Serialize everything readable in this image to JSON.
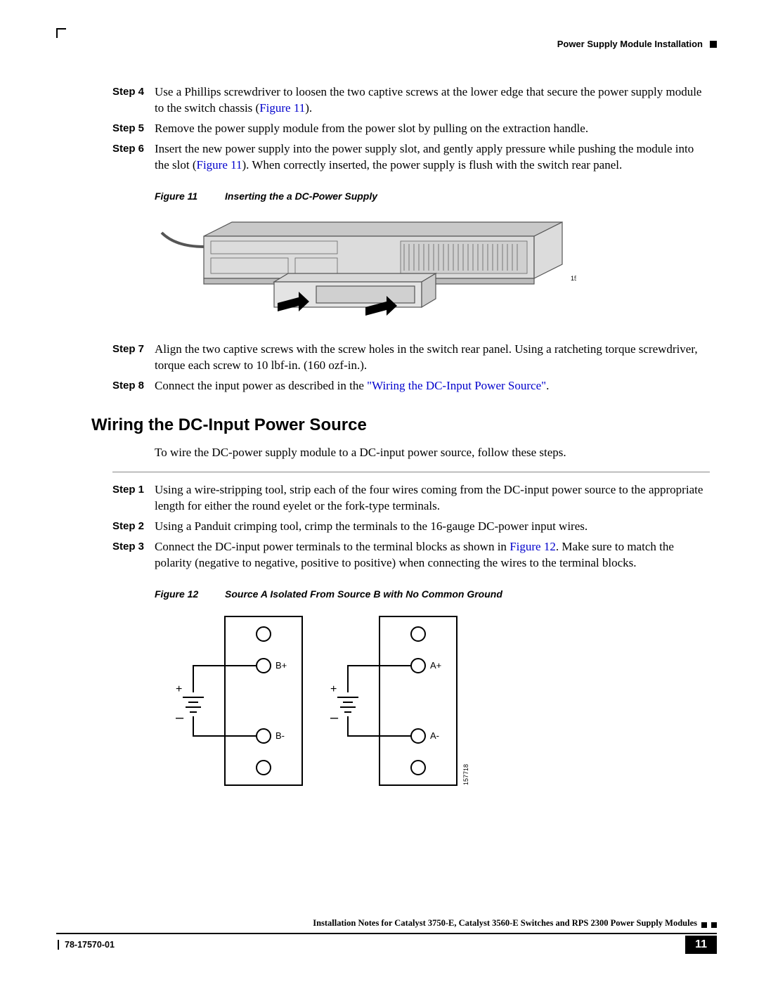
{
  "header": {
    "section_title": "Power Supply Module Installation"
  },
  "steps_top": [
    {
      "label": "Step 4",
      "pre": "Use a Phillips screwdriver to loosen the two captive screws at the lower edge that secure the power supply module to the switch chassis (",
      "link": "Figure 11",
      "post": ")."
    },
    {
      "label": "Step 5",
      "pre": "Remove the power supply module from the power slot by pulling on the extraction handle.",
      "link": "",
      "post": ""
    },
    {
      "label": "Step 6",
      "pre": "Insert the new power supply into the power supply slot, and gently apply pressure while pushing the module into the slot (",
      "link": "Figure 11",
      "post": "). When correctly inserted, the power supply is flush with the switch rear panel."
    }
  ],
  "fig11": {
    "label": "Figure 11",
    "caption": "Inserting the a DC-Power Supply",
    "imgnum": "158123"
  },
  "steps_mid": [
    {
      "label": "Step 7",
      "pre": "Align the two captive screws with the screw holes in the switch rear panel. Using a ratcheting torque screwdriver, torque each screw to 10 lbf-in. (160 ozf-in.).",
      "link": "",
      "post": ""
    },
    {
      "label": "Step 8",
      "pre": "Connect the input power as described in the ",
      "link": "\"Wiring the DC-Input Power Source\"",
      "post": "."
    }
  ],
  "section": {
    "heading": "Wiring the DC-Input Power Source",
    "intro": "To wire the DC-power supply module to a DC-input power source, follow these steps."
  },
  "steps_bot": [
    {
      "label": "Step 1",
      "pre": "Using a wire-stripping tool, strip each of the four wires coming from the DC-input power source to the appropriate length for either the round eyelet or the fork-type terminals.",
      "link": "",
      "post": ""
    },
    {
      "label": "Step 2",
      "pre": "Using a Panduit crimping tool, crimp the terminals to the 16-gauge DC-power input wires.",
      "link": "",
      "post": ""
    },
    {
      "label": "Step 3",
      "pre": "Connect the DC-input power terminals to the terminal blocks as shown in ",
      "link": "Figure 12",
      "post": ". Make sure to match the polarity (negative to negative, positive to positive) when connecting the wires to the terminal blocks."
    }
  ],
  "fig12": {
    "label": "Figure 12",
    "caption": "Source A Isolated From Source B with No Common Ground",
    "imgnum": "157718",
    "labels": {
      "b_plus": "B+",
      "b_minus": "B-",
      "a_plus": "A+",
      "a_minus": "A-",
      "plus": "+",
      "minus": "–"
    }
  },
  "footer": {
    "title": "Installation Notes for Catalyst 3750-E, Catalyst 3560-E Switches and RPS 2300 Power Supply Modules",
    "docnum": "78-17570-01",
    "page": "11"
  },
  "colors": {
    "link": "#0000cc",
    "text": "#000000",
    "chassis_fill": "#dcdcdc",
    "chassis_stroke": "#555555"
  }
}
